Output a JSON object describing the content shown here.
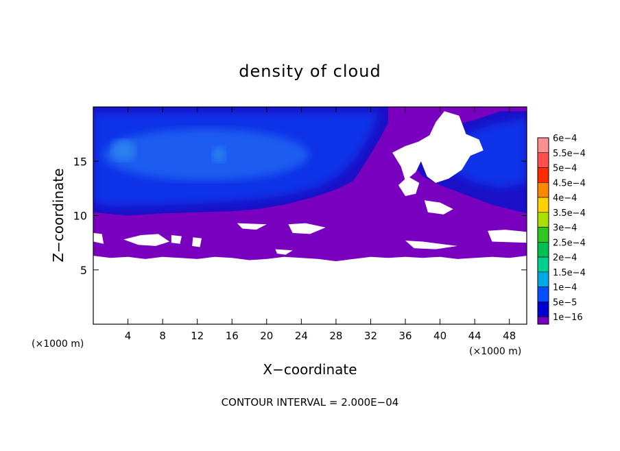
{
  "chart_data": {
    "type": "heatmap",
    "title": "density of cloud",
    "xlabel": "X−coordinate",
    "ylabel": "Z−coordinate",
    "x_unit": "(×1000 m)",
    "y_unit": "(×1000 m)",
    "xlim": [
      0,
      50
    ],
    "ylim": [
      0,
      20
    ],
    "x_ticks": [
      4,
      8,
      12,
      16,
      20,
      24,
      28,
      32,
      36,
      40,
      44,
      48
    ],
    "y_ticks": [
      5,
      10,
      15
    ],
    "footer": "CONTOUR INTERVAL = 2.000E−04",
    "colorbar": {
      "labels": [
        "6e−4",
        "5.5e−4",
        "5e−4",
        "4.5e−4",
        "4e−4",
        "3.5e−4",
        "3e−4",
        "2.5e−4",
        "2e−4",
        "1.5e−4",
        "1e−4",
        "5e−5",
        "1e−16"
      ],
      "colors": [
        "#ff9090",
        "#ff5050",
        "#ff2a00",
        "#ff8800",
        "#ffd200",
        "#a8e000",
        "#30c820",
        "#00c050",
        "#00d090",
        "#00a8e8",
        "#0050ff",
        "#0000d0",
        "#7a00c0"
      ]
    },
    "levels": {
      "clear": "#ffffff",
      "trace": "#7a00c0",
      "low": "#1a10c8",
      "mid": "#1030e8",
      "high": "#1a5cf0",
      "peak": "#2a80f0"
    }
  }
}
